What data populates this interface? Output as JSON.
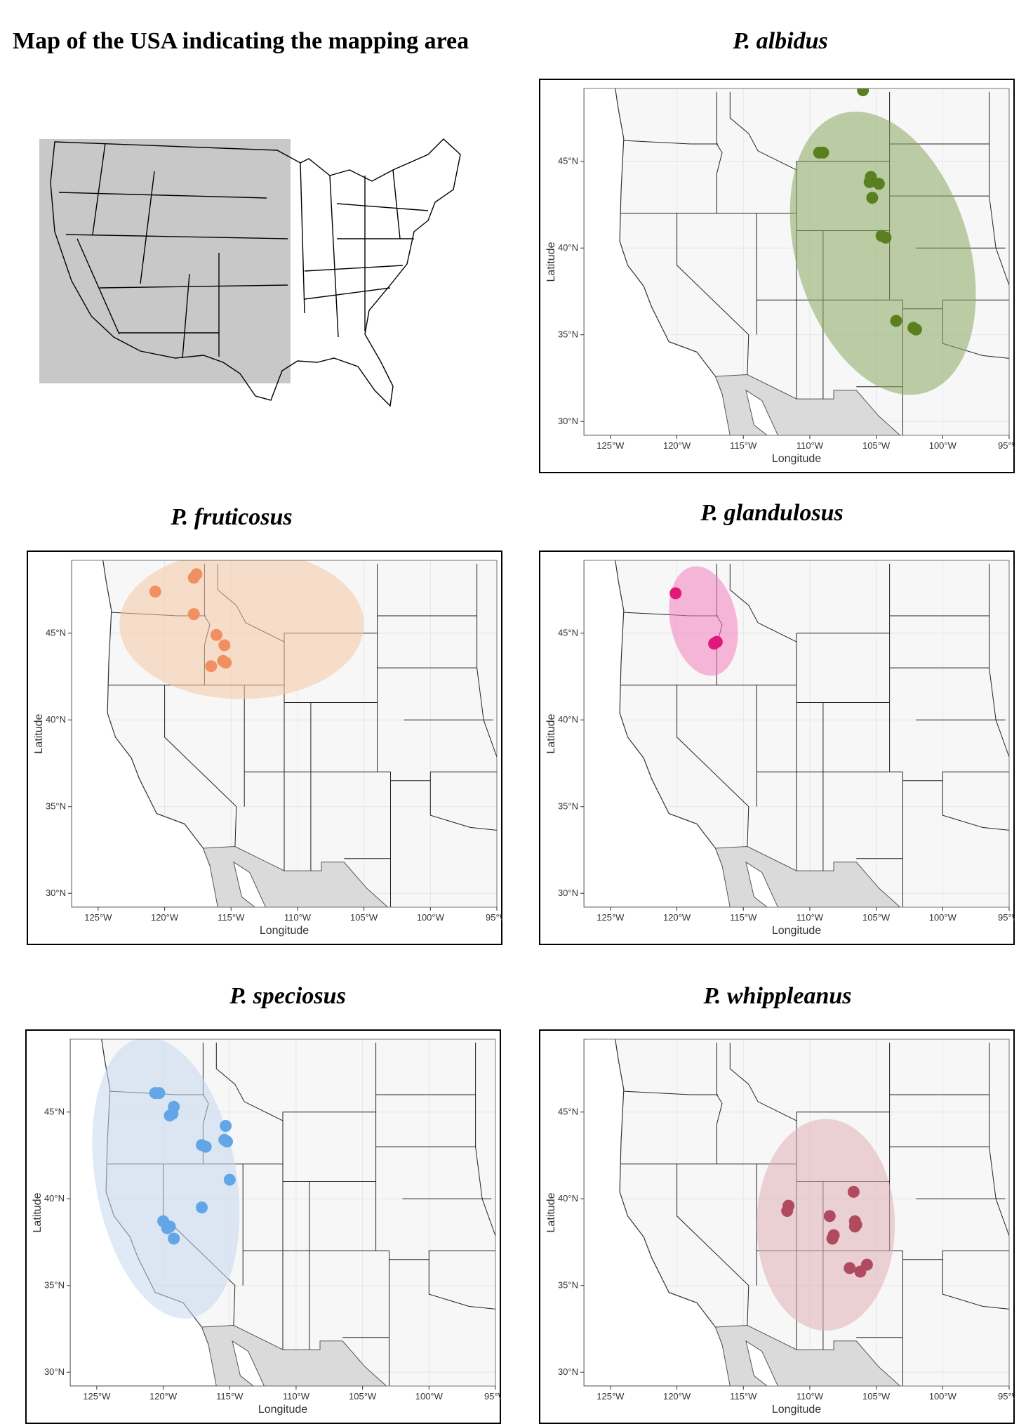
{
  "figure": {
    "overview_title": "Map of the USA indicating the mapping area",
    "axis": {
      "xlabel": "Longitude",
      "ylabel": "Latitude",
      "x_ticks": [
        "125°W",
        "120°W",
        "115°W",
        "110°W",
        "105°W",
        "100°W",
        "95°W"
      ],
      "y_ticks": [
        "30°N",
        "35°N",
        "40°N",
        "45°N"
      ],
      "x_tick_values": [
        -125,
        -120,
        -115,
        -110,
        -105,
        -100,
        -95
      ],
      "y_tick_values": [
        30,
        35,
        40,
        45
      ],
      "xlim": [
        -127,
        -95
      ],
      "ylim": [
        29.2,
        49.2
      ]
    },
    "panels": [
      {
        "id": "albidus",
        "title": "P. albidus",
        "color": "#5a7f1f",
        "ellipse_color": "#8aa860",
        "ellipse": {
          "center": [
            -104.5,
            39.7
          ],
          "radii": [
            6.5,
            8.4
          ],
          "rotation_deg": -17
        },
        "points": [
          [
            -106,
            49.1
          ],
          [
            -109.3,
            45.5
          ],
          [
            -109,
            45.5
          ],
          [
            -105.4,
            44.1
          ],
          [
            -105.5,
            43.8
          ],
          [
            -104.8,
            43.7
          ],
          [
            -105.3,
            42.9
          ],
          [
            -104.6,
            40.7
          ],
          [
            -104.3,
            40.6
          ],
          [
            -103.5,
            35.8
          ],
          [
            -102.2,
            35.4
          ],
          [
            -102,
            35.3
          ]
        ]
      },
      {
        "id": "fruticosus",
        "title": "P. fruticosus",
        "color": "#f09060",
        "ellipse_color": "#f6c8a6",
        "ellipse": {
          "center": [
            -114.2,
            45.5
          ],
          "radii": [
            9.2,
            4.3
          ],
          "rotation_deg": 0
        },
        "points": [
          [
            -117.6,
            48.4
          ],
          [
            -117.8,
            48.2
          ],
          [
            -120.7,
            47.4
          ],
          [
            -117.8,
            46.1
          ],
          [
            -116.1,
            44.9
          ],
          [
            -115.5,
            44.3
          ],
          [
            -115.6,
            43.4
          ],
          [
            -115.4,
            43.3
          ],
          [
            -116.5,
            43.1
          ]
        ]
      },
      {
        "id": "glandulosus",
        "title": "P. glandulosus",
        "color": "#e0187c",
        "ellipse_color": "#f27fbd",
        "ellipse": {
          "center": [
            -118,
            45.7
          ],
          "radii": [
            2.5,
            3.2
          ],
          "rotation_deg": -12
        },
        "points": [
          [
            -120.1,
            47.3
          ],
          [
            -117.2,
            44.4
          ],
          [
            -117,
            44.5
          ]
        ]
      },
      {
        "id": "speciosus",
        "title": "P. speciosus",
        "color": "#62a6e8",
        "ellipse_color": "#c7d9ee",
        "ellipse": {
          "center": [
            -119.8,
            41.2
          ],
          "radii": [
            5.3,
            8.2
          ],
          "rotation_deg": -10
        },
        "points": [
          [
            -120.6,
            46.1
          ],
          [
            -120.3,
            46.1
          ],
          [
            -119.2,
            45.3
          ],
          [
            -119.5,
            44.8
          ],
          [
            -119.3,
            44.9
          ],
          [
            -117.1,
            43.1
          ],
          [
            -116.8,
            43
          ],
          [
            -115.3,
            44.2
          ],
          [
            -115.4,
            43.4
          ],
          [
            -115.2,
            43.3
          ],
          [
            -115,
            41.1
          ],
          [
            -117.1,
            39.5
          ],
          [
            -120,
            38.7
          ],
          [
            -119.7,
            38.3
          ],
          [
            -119.5,
            38.4
          ],
          [
            -119.2,
            37.7
          ]
        ]
      },
      {
        "id": "whippleanus",
        "title": "P. whippleanus",
        "color": "#b04a5e",
        "ellipse_color": "#e0b0b6",
        "ellipse": {
          "center": [
            -108.8,
            38.5
          ],
          "radii": [
            5.2,
            6.1
          ],
          "rotation_deg": 0
        },
        "points": [
          [
            -111.6,
            39.6
          ],
          [
            -111.7,
            39.3
          ],
          [
            -106.7,
            40.4
          ],
          [
            -108.5,
            39
          ],
          [
            -106.6,
            38.7
          ],
          [
            -106.5,
            38.5
          ],
          [
            -106.6,
            38.4
          ],
          [
            -108.2,
            37.9
          ],
          [
            -108.3,
            37.7
          ],
          [
            -107,
            36
          ],
          [
            -106.2,
            35.8
          ],
          [
            -105.7,
            36.2
          ]
        ]
      }
    ]
  }
}
